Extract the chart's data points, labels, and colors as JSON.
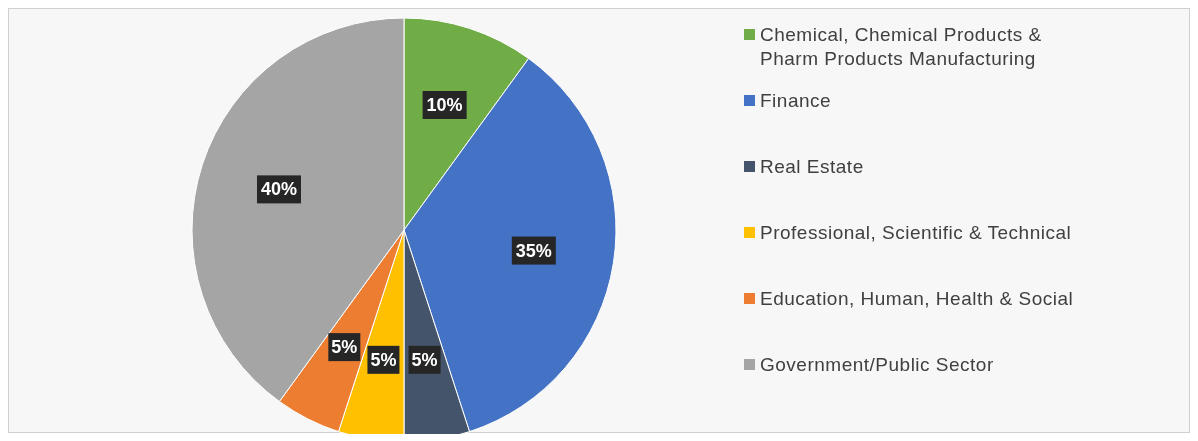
{
  "chart_data": {
    "type": "pie",
    "categories": [
      "Chemical, Chemical Products & Pharm Products Manufacturing",
      "Finance",
      "Real Estate",
      "Professional, Scientific & Technical",
      "Education, Human, Health & Social",
      "Government/Public Sector"
    ],
    "values": [
      10,
      35,
      5,
      5,
      5,
      40
    ],
    "colors": [
      "#70ad47",
      "#4472c4",
      "#44546a",
      "#ffc000",
      "#ed7d31",
      "#a5a5a5"
    ],
    "value_labels": [
      "10%",
      "35%",
      "5%",
      "5%",
      "5%",
      "40%"
    ],
    "legend": "right"
  }
}
